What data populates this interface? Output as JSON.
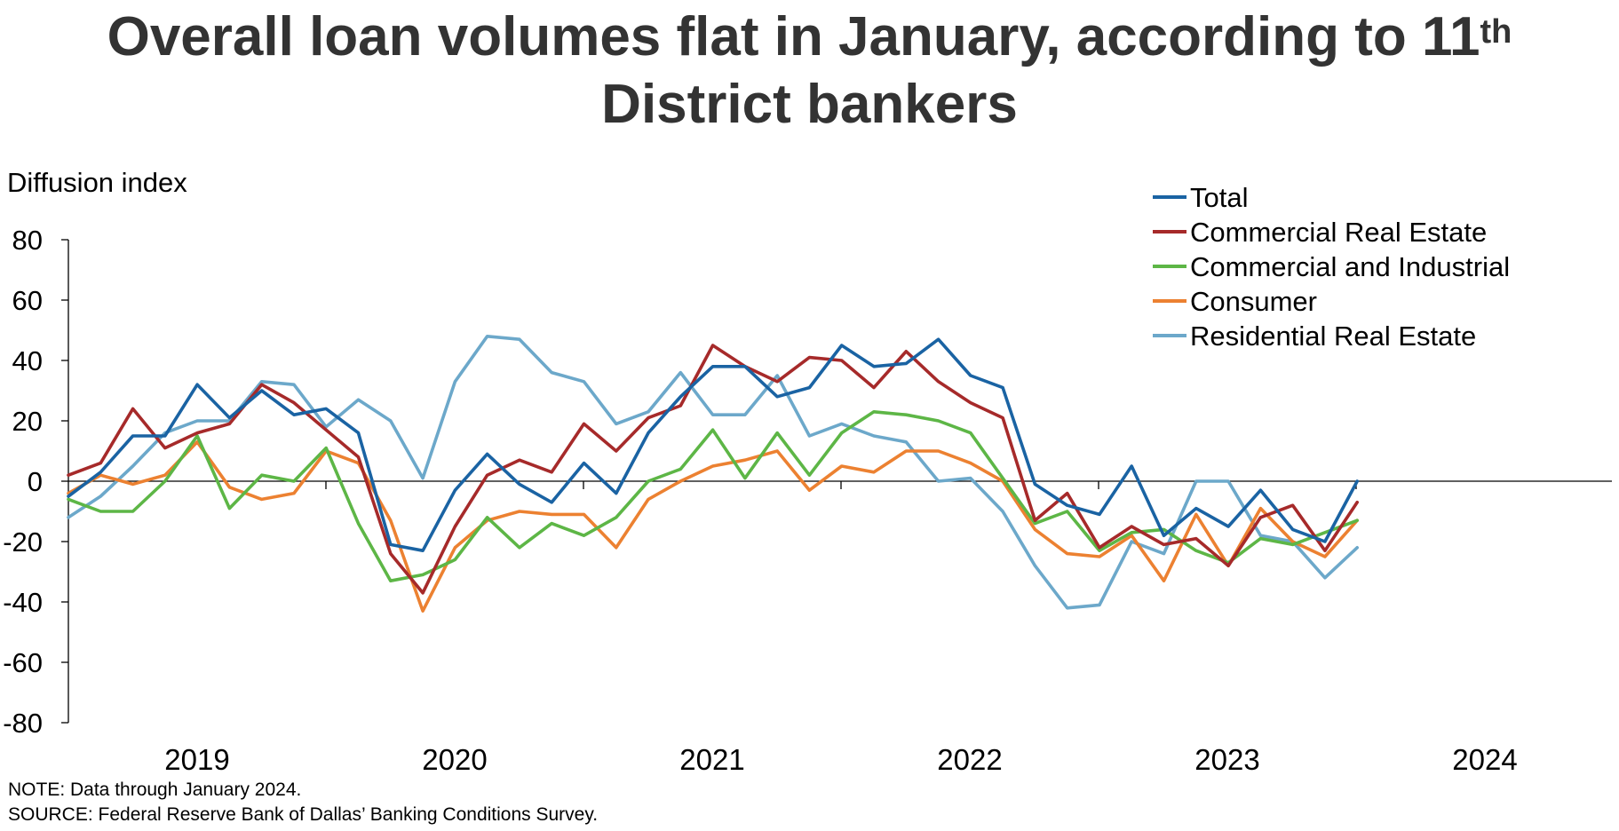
{
  "title": {
    "main": "Overall loan volumes flat in January, according to 11",
    "sup": "th",
    "line2": "District bankers"
  },
  "note": "NOTE: Data through January 2024.",
  "source": "SOURCE: Federal Reserve Bank of Dallas’ Banking Conditions Survey.",
  "chart_data": {
    "type": "line",
    "ylabel": "Diffusion index",
    "ylim": [
      -80,
      80
    ],
    "yticks": [
      80,
      60,
      40,
      20,
      0,
      -20,
      -40,
      -60,
      -80
    ],
    "x_period_labels": [
      "2019",
      "2020",
      "2021",
      "2022",
      "2023",
      "2024"
    ],
    "grid": false,
    "legend_position": "top-right",
    "series": [
      {
        "name": "Total",
        "color": "#1a63a3",
        "values": [
          -5,
          3,
          15,
          15,
          32,
          21,
          30,
          22,
          24,
          16,
          -21,
          -23,
          -3,
          9,
          -1,
          -7,
          6,
          -4,
          16,
          28,
          38,
          38,
          28,
          31,
          45,
          38,
          39,
          47,
          35,
          31,
          -1,
          -8,
          -11,
          5,
          -18,
          -9,
          -15,
          -3,
          -16,
          -20,
          0
        ]
      },
      {
        "name": "Commercial Real Estate",
        "color": "#a62a2a",
        "values": [
          2,
          6,
          24,
          11,
          16,
          19,
          32,
          26,
          17,
          8,
          -24,
          -37,
          -15,
          2,
          7,
          3,
          19,
          10,
          21,
          25,
          45,
          38,
          33,
          41,
          40,
          31,
          43,
          33,
          26,
          21,
          -13,
          -4,
          -22,
          -15,
          -21,
          -19,
          -28,
          -12,
          -8,
          -23,
          -7
        ]
      },
      {
        "name": "Commercial and Industrial",
        "color": "#5db646",
        "values": [
          -6,
          -10,
          -10,
          0,
          15,
          -9,
          2,
          0,
          11,
          -14,
          -33,
          -31,
          -26,
          -12,
          -22,
          -14,
          -18,
          -12,
          0,
          4,
          17,
          1,
          16,
          2,
          16,
          23,
          22,
          20,
          16,
          1,
          -14,
          -10,
          -23,
          -17,
          -16,
          -23,
          -27,
          -19,
          -21,
          -17,
          -13
        ]
      },
      {
        "name": "Consumer",
        "color": "#ec8131",
        "values": [
          -4,
          2,
          -1,
          2,
          13,
          -2,
          -6,
          -4,
          10,
          6,
          -13,
          -43,
          -22,
          -13,
          -10,
          -11,
          -11,
          -22,
          -6,
          0,
          5,
          7,
          10,
          -3,
          5,
          3,
          10,
          10,
          6,
          0,
          -16,
          -24,
          -25,
          -18,
          -33,
          -11,
          -28,
          -9,
          -20,
          -25,
          -13
        ]
      },
      {
        "name": "Residential Real Estate",
        "color": "#6ca8ca",
        "values": [
          -12,
          -5,
          5,
          16,
          20,
          20,
          33,
          32,
          18,
          27,
          20,
          1,
          33,
          48,
          47,
          36,
          33,
          19,
          23,
          36,
          22,
          22,
          35,
          15,
          19,
          15,
          13,
          0,
          1,
          -10,
          -28,
          -42,
          -41,
          -20,
          -24,
          0,
          0,
          -18,
          -20,
          -32,
          -22
        ]
      }
    ]
  }
}
